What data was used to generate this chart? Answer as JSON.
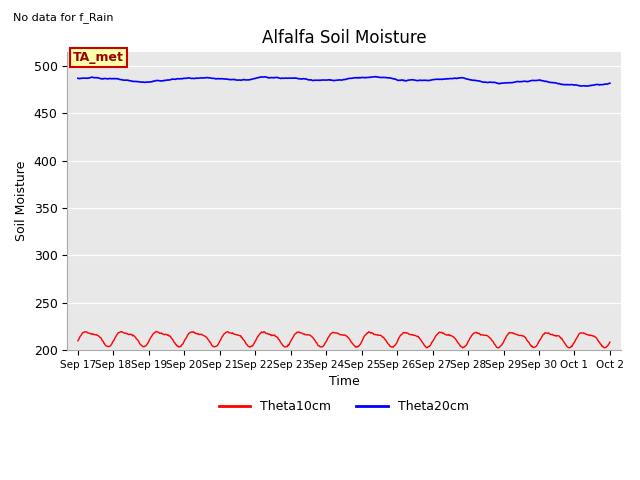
{
  "title": "Alfalfa Soil Moisture",
  "no_data_text": "No data for f_Rain",
  "ylabel": "Soil Moisture",
  "xlabel": "Time",
  "ta_met_label": "TA_met",
  "legend_entries": [
    "Theta10cm",
    "Theta20cm"
  ],
  "line_colors": [
    "#ff0000",
    "#0000ff"
  ],
  "bg_color": "#e8e8e8",
  "fig_bg": "#ffffff",
  "ylim": [
    200,
    515
  ],
  "yticks": [
    200,
    250,
    300,
    350,
    400,
    450,
    500
  ],
  "x_tick_labels": [
    "Sep 17",
    "Sep 18",
    "Sep 19",
    "Sep 20",
    "Sep 21",
    "Sep 22",
    "Sep 23",
    "Sep 24",
    "Sep 25",
    "Sep 26",
    "Sep 27",
    "Sep 28",
    "Sep 29",
    "Sep 30",
    "Oct 1",
    "Oct 2"
  ],
  "num_days": 15,
  "num_points": 720,
  "red_base": 213,
  "red_amp_main": 7,
  "red_amp_sub": 2.5,
  "red_period_main": 1.0,
  "red_period_sub": 0.5,
  "red_trend": -0.08,
  "blue_base": 487,
  "blue_noise_amp": 1.5,
  "blue_trend": -0.35,
  "blue_wave_amp": 2.0,
  "blue_wave_period": 2.5,
  "ta_box_facecolor": "#ffffaa",
  "ta_box_edgecolor": "#cc0000",
  "ta_text_color": "#990000",
  "grid_color": "#ffffff",
  "title_fontsize": 12,
  "axis_fontsize": 9,
  "tick_fontsize": 7.5,
  "legend_fontsize": 9
}
